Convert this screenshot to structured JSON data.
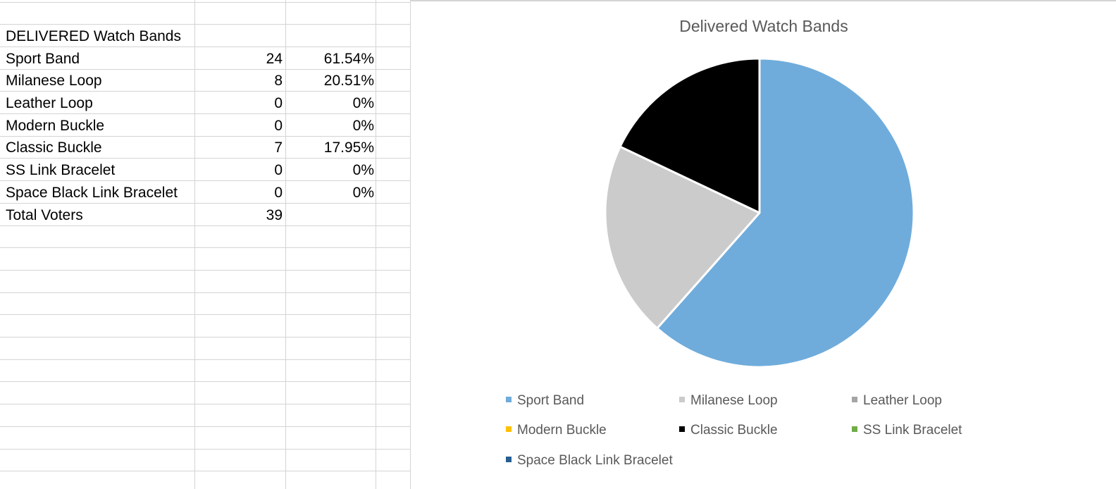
{
  "sheet": {
    "header": "DELIVERED Watch Bands",
    "rows": [
      {
        "label": "Sport Band",
        "count": "24",
        "pct": "61.54%"
      },
      {
        "label": "Milanese Loop",
        "count": "8",
        "pct": "20.51%"
      },
      {
        "label": "Leather Loop",
        "count": "0",
        "pct": "0%"
      },
      {
        "label": "Modern Buckle",
        "count": "0",
        "pct": "0%"
      },
      {
        "label": "Classic Buckle",
        "count": "7",
        "pct": "17.95%"
      },
      {
        "label": "SS Link Bracelet",
        "count": "0",
        "pct": "0%"
      },
      {
        "label": "Space Black Link Bracelet",
        "count": "0",
        "pct": "0%"
      }
    ],
    "total": {
      "label": "Total Voters",
      "count": "39"
    }
  },
  "chart_data": {
    "type": "pie",
    "title": "Delivered Watch Bands",
    "categories": [
      "Sport Band",
      "Milanese Loop",
      "Leather Loop",
      "Modern Buckle",
      "Classic Buckle",
      "SS Link Bracelet",
      "Space Black Link Bracelet"
    ],
    "values": [
      24,
      8,
      0,
      0,
      7,
      0,
      0
    ],
    "colors": [
      "#6FACDB",
      "#CBCBCB",
      "#A5A5A5",
      "#FFC000",
      "#000000",
      "#70AD47",
      "#255E91"
    ],
    "legend_position": "bottom"
  }
}
